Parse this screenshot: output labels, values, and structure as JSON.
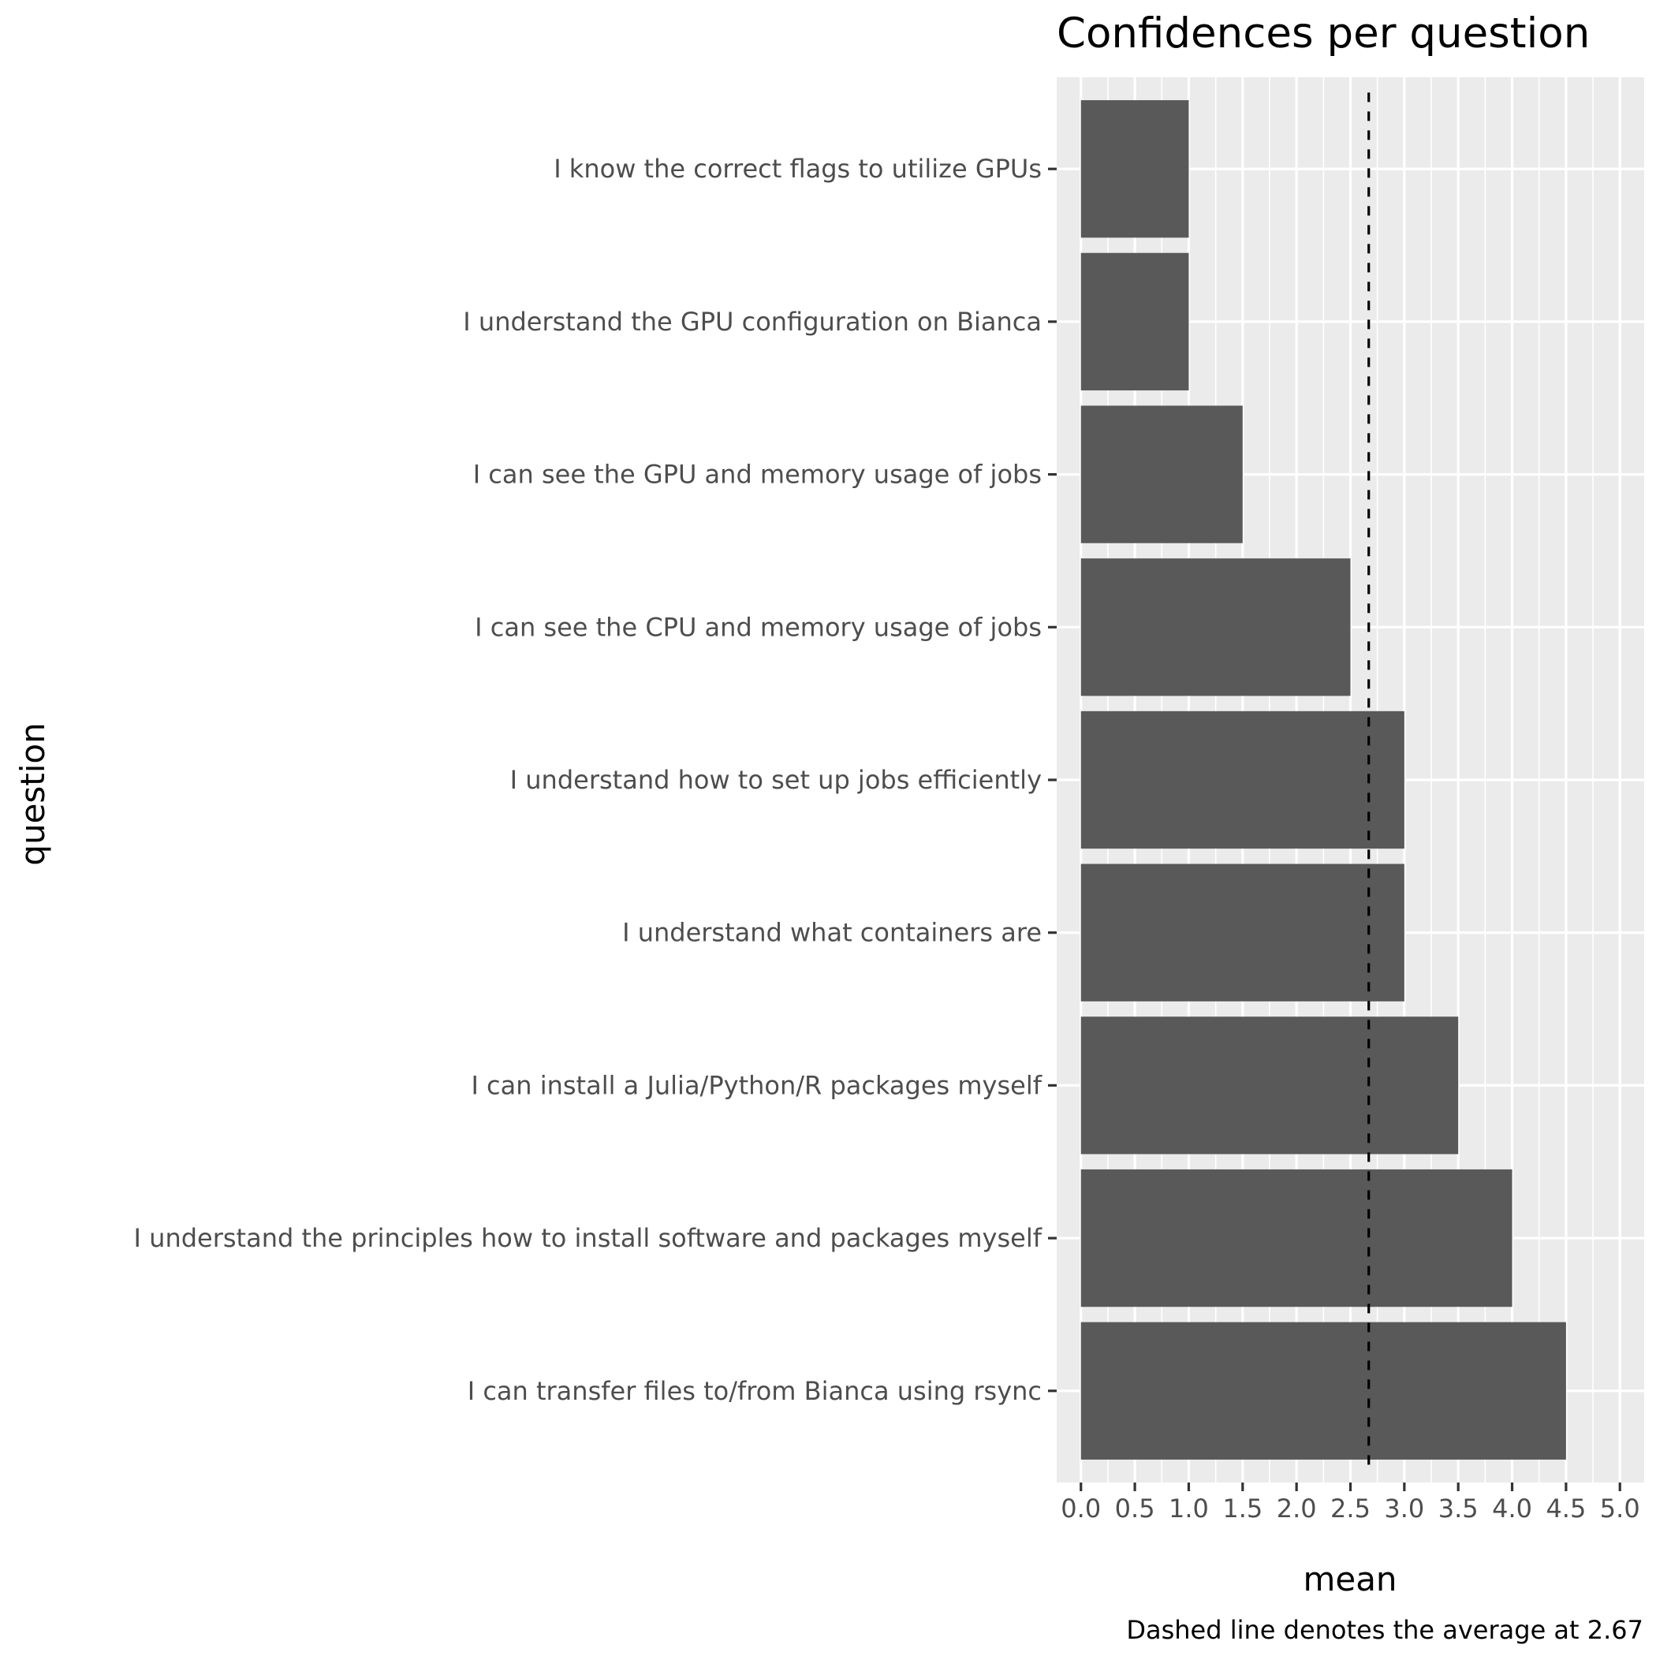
{
  "chart_data": {
    "type": "bar",
    "orientation": "horizontal",
    "title": "Confidences per question",
    "xlabel": "mean",
    "ylabel": "question",
    "caption": "Dashed line denotes the average at 2.67",
    "categories": [
      "I know the correct flags to utilize GPUs",
      "I understand the GPU configuration on Bianca",
      "I can see the GPU and memory usage of jobs",
      "I can see the CPU and memory usage of jobs",
      "I understand how to set up jobs efficiently",
      "I understand what containers are",
      "I can install a Julia/Python/R packages myself",
      "I understand the principles how to install software and packages myself",
      "I can transfer files to/from Bianca using rsync"
    ],
    "values": [
      1.0,
      1.0,
      1.5,
      2.5,
      3.0,
      3.0,
      3.5,
      4.0,
      4.5
    ],
    "xlim": [
      -0.225,
      5.225
    ],
    "xticks": [
      "0.0",
      "0.5",
      "1.0",
      "1.5",
      "2.0",
      "2.5",
      "3.0",
      "3.5",
      "4.0",
      "4.5",
      "5.0"
    ],
    "reference_line": {
      "value": 2.67,
      "style": "dashed"
    },
    "grid": true,
    "legend": "none",
    "colors": {
      "bar": "#595959",
      "panel": "#ebebeb",
      "grid_major": "#ffffff",
      "reference_line": "#000000",
      "tick_label": "#4d4d4d"
    }
  }
}
